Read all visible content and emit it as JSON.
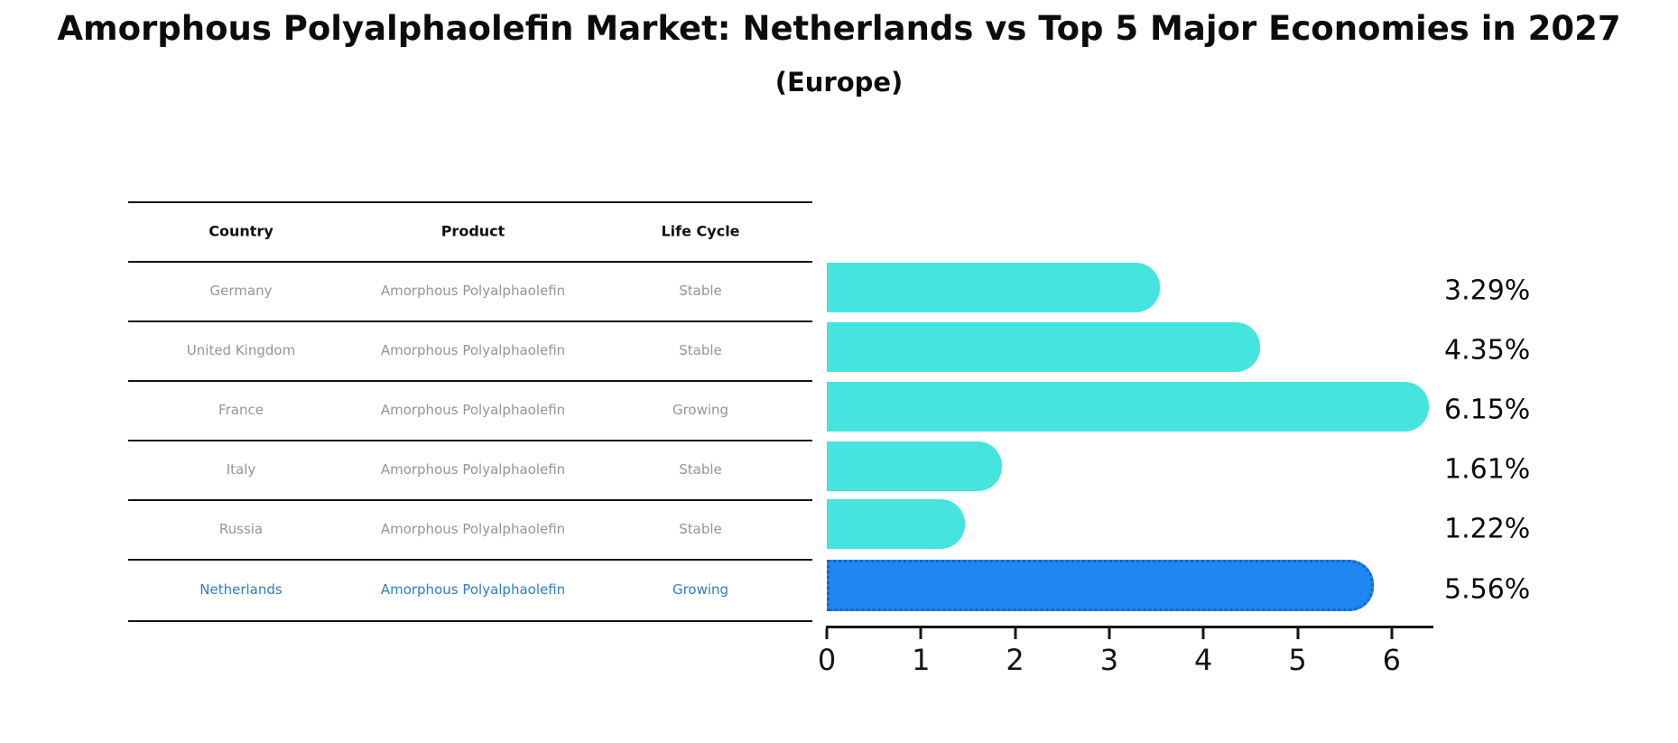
{
  "title": "Amorphous Polyalphaolefin Market: Netherlands vs Top 5 Major Economies in 2027",
  "subtitle": "(Europe)",
  "table": {
    "columns": [
      "Country",
      "Product",
      "Life Cycle"
    ],
    "rows": [
      {
        "country": "Germany",
        "product": "Amorphous Polyalphaolefin",
        "life_cycle": "Stable",
        "value_label": "3.29%",
        "highlighted": false
      },
      {
        "country": "United Kingdom",
        "product": "Amorphous Polyalphaolefin",
        "life_cycle": "Stable",
        "value_label": "4.35%",
        "highlighted": false
      },
      {
        "country": "France",
        "product": "Amorphous Polyalphaolefin",
        "life_cycle": "Growing",
        "value_label": "6.15%",
        "highlighted": false
      },
      {
        "country": "Italy",
        "product": "Amorphous Polyalphaolefin",
        "life_cycle": "Stable",
        "value_label": "1.61%",
        "highlighted": false
      },
      {
        "country": "Russia",
        "product": "Amorphous Polyalphaolefin",
        "life_cycle": "Stable",
        "value_label": "1.22%",
        "highlighted": false
      },
      {
        "country": "Netherlands",
        "product": "Amorphous Polyalphaolefin",
        "life_cycle": "Growing",
        "value_label": "5.56%",
        "highlighted": true
      }
    ]
  },
  "chart_data": {
    "type": "bar",
    "orientation": "horizontal",
    "title": "Amorphous Polyalphaolefin Market: Netherlands vs Top 5 Major Economies in 2027",
    "subtitle": "(Europe)",
    "categories": [
      "Germany",
      "United Kingdom",
      "France",
      "Italy",
      "Russia",
      "Netherlands"
    ],
    "values": [
      3.29,
      4.35,
      6.15,
      1.61,
      1.22,
      5.56
    ],
    "unit": "%",
    "xlim": [
      0,
      6.5
    ],
    "xticks": [
      0,
      1,
      2,
      3,
      4,
      5,
      6
    ],
    "grid": false,
    "legend": false,
    "highlight_index": 5
  },
  "colors": {
    "bar": "#45E4DE",
    "highlight_bar": "#1E87F2",
    "highlight_border": "#1464D2",
    "highlight_text": "#2E7EBF",
    "row_text": "#959595",
    "header_text": "#111111",
    "line": "#141414"
  }
}
